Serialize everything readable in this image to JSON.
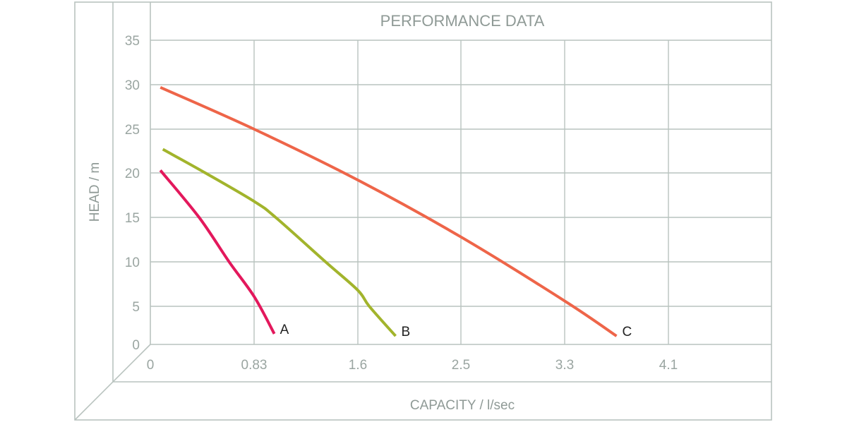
{
  "chart_data": {
    "type": "line",
    "title": "PERFORMANCE DATA",
    "xlabel": "CAPACITY / l/sec",
    "ylabel": "HEAD / m",
    "x_ticks": [
      "0",
      "0.83",
      "1.6",
      "2.5",
      "3.3",
      "4.1"
    ],
    "x_tick_values": [
      0,
      0.83,
      1.6,
      2.5,
      3.3,
      4.1
    ],
    "y_ticks": [
      "0",
      "5",
      "10",
      "15",
      "20",
      "25",
      "30",
      "35"
    ],
    "y_tick_values": [
      0,
      5,
      10,
      15,
      20,
      25,
      30,
      35
    ],
    "ylim": [
      0,
      35
    ],
    "grid": true,
    "legend": "inline labels at curve ends",
    "series": [
      {
        "name": "A",
        "color": "#e3185c",
        "points": [
          [
            0.08,
            20.3
          ],
          [
            0.39,
            15.0
          ],
          [
            0.63,
            10.0
          ],
          [
            0.83,
            6.1
          ],
          [
            0.98,
            1.4
          ]
        ]
      },
      {
        "name": "B",
        "color": "#a2b42c",
        "points": [
          [
            0.1,
            22.7
          ],
          [
            0.44,
            20.0
          ],
          [
            0.83,
            16.8
          ],
          [
            0.99,
            15.0
          ],
          [
            1.36,
            10.0
          ],
          [
            1.6,
            6.8
          ],
          [
            1.7,
            5.0
          ],
          [
            1.93,
            1.1
          ]
        ]
      },
      {
        "name": "C",
        "color": "#ee6549",
        "points": [
          [
            0.08,
            29.7
          ],
          [
            0.83,
            25.0
          ],
          [
            1.6,
            19.2
          ],
          [
            2.5,
            12.8
          ],
          [
            3.3,
            5.6
          ],
          [
            3.7,
            1.1
          ]
        ]
      }
    ]
  },
  "colors": {
    "grid": "#b9c3bf",
    "tick_text": "#9aa5a1",
    "title_text": "#8f9a96",
    "label_text": "#222222"
  }
}
